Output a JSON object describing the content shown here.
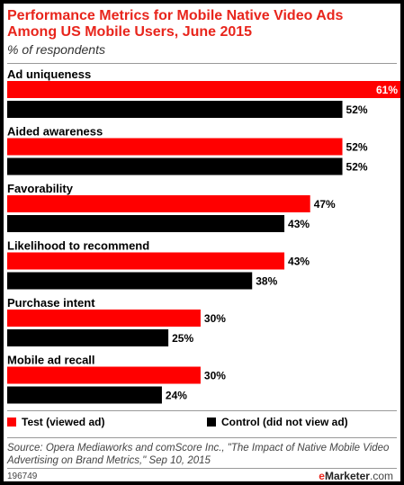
{
  "chart_data": {
    "type": "bar",
    "orientation": "horizontal",
    "title": "Performance Metrics for Mobile Native Video Ads Among US Mobile Users, June 2015",
    "subtitle": "% of respondents",
    "categories": [
      "Ad uniqueness",
      "Aided awareness",
      "Favorability",
      "Likelihood to recommend",
      "Purchase intent",
      "Mobile ad recall"
    ],
    "series": [
      {
        "name": "Test (viewed ad)",
        "color": "#ff0000",
        "values": [
          61,
          52,
          47,
          43,
          30,
          30
        ]
      },
      {
        "name": "Control (did not view ad)",
        "color": "#000000",
        "values": [
          52,
          52,
          43,
          38,
          25,
          24
        ]
      }
    ],
    "value_suffix": "%",
    "xlim": [
      0,
      61
    ],
    "grid": false,
    "legend_position": "bottom"
  },
  "footer": {
    "source": "Source: Opera Mediaworks and comScore Inc., \"The Impact of Native Mobile Video Advertising on Brand Metrics,\" Sep 10, 2015",
    "chart_id": "196749",
    "brand_e": "e",
    "brand_rest": "Marketer",
    "brand_dotcom": ".com"
  }
}
